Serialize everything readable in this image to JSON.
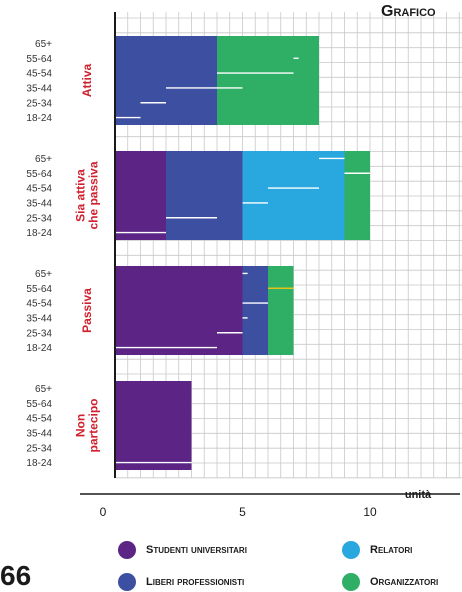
{
  "title": "Grafico",
  "page_number": "66",
  "chart_data": {
    "type": "bar",
    "orientation": "horizontal",
    "stacked": true,
    "xlabel": "unità",
    "xlim": [
      0,
      13
    ],
    "x_ticks": [
      0,
      5,
      10
    ],
    "grid": true,
    "legend_position": "bottom",
    "categories": [
      "Attiva",
      "Sia attiva che passiva",
      "Passiva",
      "Non partecipo"
    ],
    "age_groups": [
      "65+",
      "55-64",
      "45-54",
      "35-44",
      "25-34",
      "18-24"
    ],
    "series": [
      {
        "name": "Studenti universitari",
        "color": "#5c2585",
        "values": [
          0,
          2,
          5,
          3
        ]
      },
      {
        "name": "Liberi professionisti",
        "color": "#3d4fa0",
        "values": [
          4,
          3,
          1,
          0
        ]
      },
      {
        "name": "Relatori",
        "color": "#29a8e0",
        "values": [
          0,
          4,
          0,
          0
        ]
      },
      {
        "name": "Organizzatori",
        "color": "#2fae66",
        "values": [
          4,
          1,
          1,
          0
        ]
      }
    ],
    "age_breakdown": [
      {
        "category": "Attiva",
        "values": [
          [
            8,
            8.2
          ],
          [
            7,
            7.2
          ],
          [
            4,
            7
          ],
          [
            2,
            5
          ],
          [
            1,
            2
          ],
          [
            0,
            1
          ]
        ]
      },
      {
        "category": "Sia attiva che passiva",
        "values": [
          [
            8,
            9
          ],
          [
            9,
            10
          ],
          [
            6,
            8
          ],
          [
            5,
            6
          ],
          [
            2,
            4
          ],
          [
            0,
            2
          ]
        ]
      },
      {
        "category": "Passiva",
        "values": [
          [
            5,
            5.2
          ],
          [
            6,
            7
          ],
          [
            5,
            6
          ],
          [
            5,
            5.2
          ],
          [
            4,
            5
          ],
          [
            0,
            4
          ]
        ]
      },
      {
        "category": "Non partecipo",
        "values": [
          [
            0,
            0
          ],
          [
            0,
            0
          ],
          [
            0,
            0
          ],
          [
            0,
            0
          ],
          [
            0,
            0
          ],
          [
            0,
            3
          ]
        ]
      }
    ]
  },
  "legend": {
    "items": [
      {
        "label": "Studenti universitari",
        "color": "#5c2585"
      },
      {
        "label": "Relatori",
        "color": "#29a8e0"
      },
      {
        "label": "Liberi professionisti",
        "color": "#3d4fa0"
      },
      {
        "label": "Organizzatori",
        "color": "#2fae66"
      }
    ]
  },
  "group_labels": [
    [
      "Attiva"
    ],
    [
      "Sia attiva",
      "che passiva"
    ],
    [
      "Passiva"
    ],
    [
      "Non",
      "partecipo"
    ]
  ],
  "colors": {
    "group_label": "#d0202e",
    "grid": "#c8c8c8",
    "axis": "#1a1a1a",
    "highlight": "#e3c21a"
  }
}
